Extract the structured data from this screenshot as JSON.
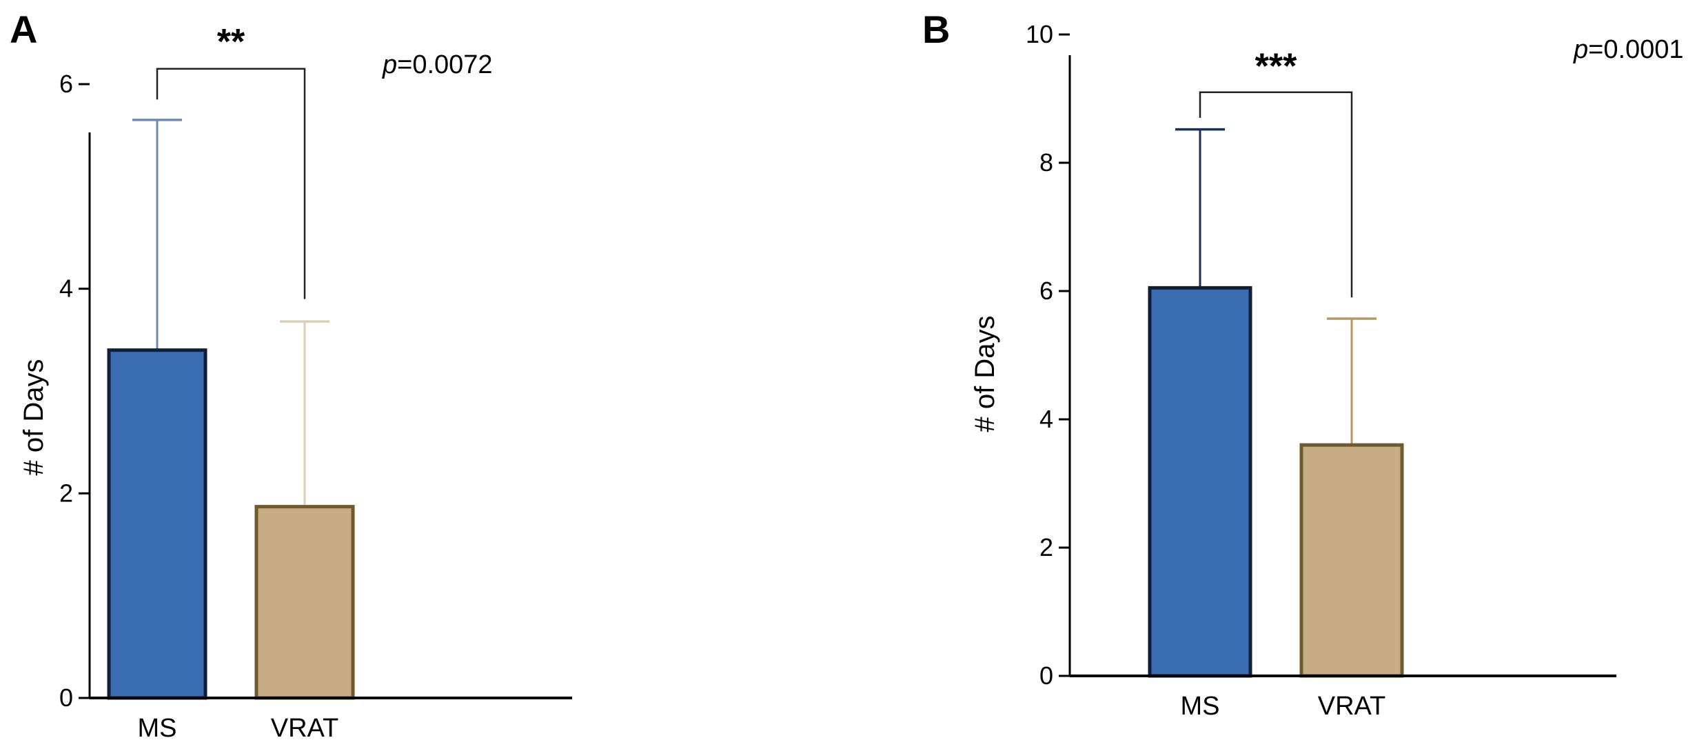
{
  "chart_data": [
    {
      "type": "bar",
      "panel": "A",
      "categories": [
        "MS",
        "VRAT"
      ],
      "values": [
        3.4,
        1.87
      ],
      "error_upper": [
        5.65,
        3.68
      ],
      "colors": [
        "#3b6db3",
        "#c7ad83"
      ],
      "edge_colors": [
        "#0f1f3a",
        "#6e5a2c"
      ],
      "errorbar_colors": [
        "#6f89b0",
        "#ddd0b2"
      ],
      "ylabel": "# of Days",
      "xlabel": "",
      "ylim": [
        0,
        6
      ],
      "yticks": [
        0,
        2,
        4,
        6
      ],
      "significance": {
        "label": "**",
        "p_symbol": "p",
        "p_value": "=0.0072",
        "bracket_level": 6.15,
        "left_drop": 5.85,
        "right_drop": 3.9
      }
    },
    {
      "type": "bar",
      "panel": "B",
      "categories": [
        "MS",
        "VRAT"
      ],
      "values": [
        6.05,
        3.6
      ],
      "error_upper": [
        8.52,
        5.57
      ],
      "colors": [
        "#3b6db3",
        "#c7ad83"
      ],
      "edge_colors": [
        "#0f1f3a",
        "#6e5a2c"
      ],
      "errorbar_colors": [
        "#1a2f58",
        "#b49a62"
      ],
      "ylabel": "# of Days",
      "xlabel": "",
      "ylim": [
        0,
        10
      ],
      "yticks": [
        0,
        2,
        4,
        6,
        8,
        10
      ],
      "significance": {
        "label": "***",
        "p_symbol": "p",
        "p_value": "=0.0001",
        "bracket_level": 9.1,
        "left_drop": 8.7,
        "right_drop": 5.9
      }
    }
  ]
}
